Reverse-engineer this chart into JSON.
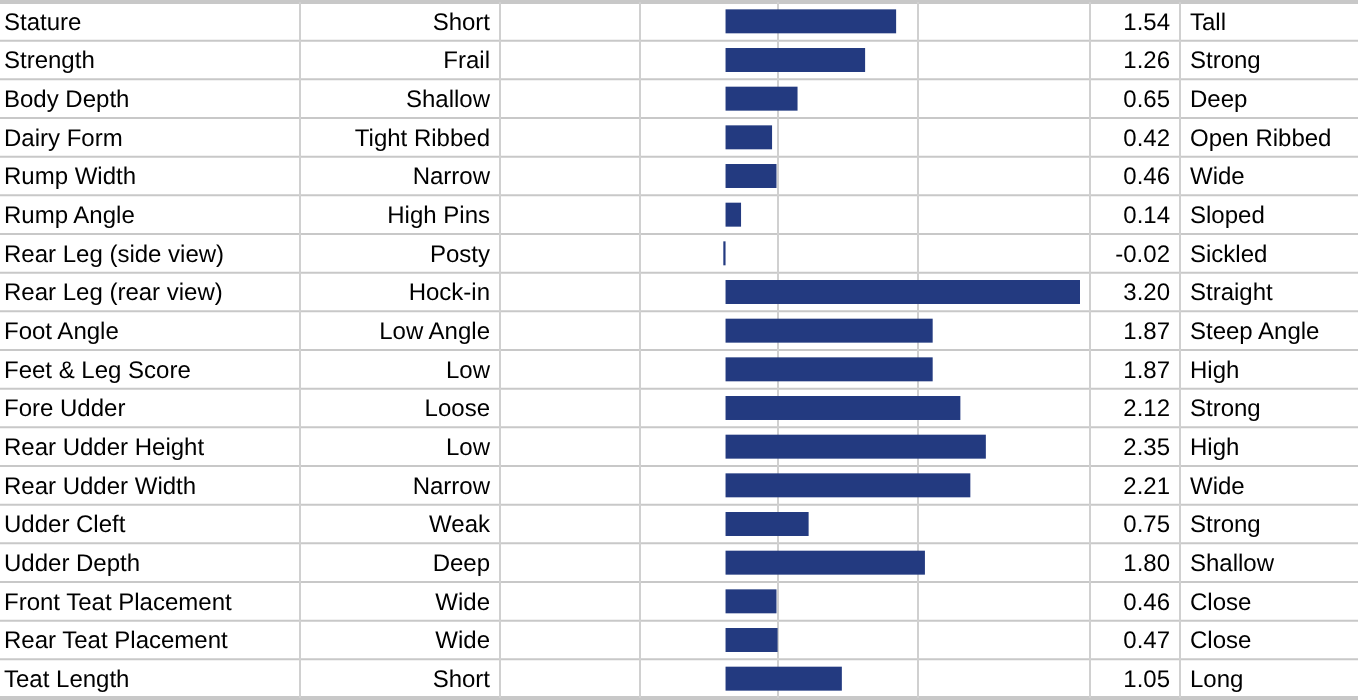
{
  "chart_data": {
    "type": "bar",
    "orientation": "horizontal",
    "categories": [
      "Stature",
      "Strength",
      "Body Depth",
      "Dairy Form",
      "Rump Width",
      "Rump Angle",
      "Rear Leg (side view)",
      "Rear Leg (rear view)",
      "Foot Angle",
      "Feet & Leg Score",
      "Fore Udder",
      "Rear Udder Height",
      "Rear Udder Width",
      "Udder Cleft",
      "Udder Depth",
      "Front Teat Placement",
      "Rear Teat Placement",
      "Teat Length"
    ],
    "values": [
      1.54,
      1.26,
      0.65,
      0.42,
      0.46,
      0.14,
      -0.02,
      3.2,
      1.87,
      1.87,
      2.12,
      2.35,
      2.21,
      0.75,
      1.8,
      0.46,
      0.47,
      1.05
    ],
    "value_labels": [
      "1.54",
      "1.26",
      "0.65",
      "0.42",
      "0.46",
      "0.14",
      "-0.02",
      "3.20",
      "1.87",
      "1.87",
      "2.12",
      "2.35",
      "2.21",
      "0.75",
      "1.80",
      "0.46",
      "0.47",
      "1.05"
    ],
    "color": "#233a80",
    "xlim": [
      -2,
      3.2
    ],
    "tick_labels": "y",
    "annotations": [
      "Short",
      "Frail",
      "Shallow",
      "Tight Ribbed",
      "Narrow",
      "High Pins",
      "Posty",
      "Hock-in",
      "Low Angle",
      "Low",
      "Loose",
      "Low",
      "Narrow",
      "Weak",
      "Deep",
      "Wide",
      "Wide",
      "Short",
      "Tall",
      "Strong",
      "Deep",
      "Open Ribbed",
      "Wide",
      "Sloped",
      "Sickled",
      "Straight",
      "Steep Angle",
      "High",
      "Strong",
      "High",
      "Wide",
      "Strong",
      "Shallow",
      "Close",
      "Close",
      "Long"
    ]
  }
}
